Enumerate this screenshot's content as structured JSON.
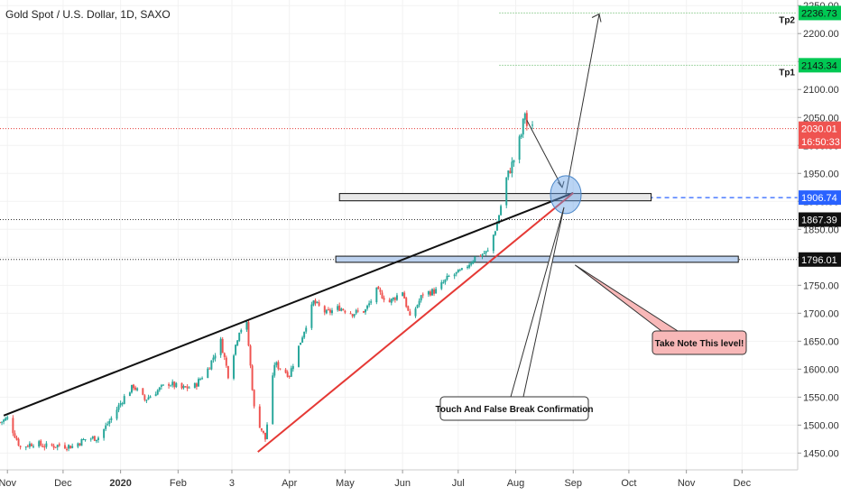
{
  "chart_data": {
    "type": "candlestick",
    "title": "Gold Spot / U.S. Dollar, 1D, SAXO",
    "y_axis": {
      "min": 1420,
      "max": 2260,
      "ticks": [
        1450,
        1500,
        1550,
        1600,
        1650,
        1700,
        1750,
        1800,
        1850,
        1900,
        1950,
        2000,
        2050,
        2100,
        2150,
        2200,
        2250
      ],
      "tick_labels": [
        "1450.00",
        "1500.00",
        "1550.00",
        "1600.00",
        "1650.00",
        "1700.00",
        "1750.00",
        "1800.00",
        "1850.00",
        "1900.00",
        "1950.00",
        "2000.00",
        "2050.00",
        "2100.00",
        "2150.00",
        "2200.00",
        "2250.00"
      ],
      "position": "right"
    },
    "x_axis": {
      "start": "2019-10-28",
      "end": "2020-12-31",
      "ticks": [
        {
          "label": "Nov",
          "date": "2019-11-01"
        },
        {
          "label": "Dec",
          "date": "2019-12-01"
        },
        {
          "label": "2020",
          "date": "2020-01-01"
        },
        {
          "label": "Feb",
          "date": "2020-02-01"
        },
        {
          "label": "3",
          "date": "2020-03-01"
        },
        {
          "label": "Apr",
          "date": "2020-04-01"
        },
        {
          "label": "May",
          "date": "2020-05-01"
        },
        {
          "label": "Jun",
          "date": "2020-06-01"
        },
        {
          "label": "Jul",
          "date": "2020-07-01"
        },
        {
          "label": "Aug",
          "date": "2020-08-01"
        },
        {
          "label": "Sep",
          "date": "2020-09-01"
        },
        {
          "label": "Oct",
          "date": "2020-10-01"
        },
        {
          "label": "Nov",
          "date": "2020-11-01"
        },
        {
          "label": "Dec",
          "date": "2020-12-01"
        }
      ]
    },
    "price_path": [
      [
        "2019-10-28",
        1505
      ],
      [
        "2019-11-01",
        1512
      ],
      [
        "2019-11-08",
        1460
      ],
      [
        "2019-11-15",
        1468
      ],
      [
        "2019-11-22",
        1462
      ],
      [
        "2019-11-29",
        1464
      ],
      [
        "2019-12-06",
        1462
      ],
      [
        "2019-12-13",
        1475
      ],
      [
        "2019-12-20",
        1478
      ],
      [
        "2019-12-27",
        1512
      ],
      [
        "2020-01-03",
        1550
      ],
      [
        "2020-01-08",
        1570
      ],
      [
        "2020-01-14",
        1545
      ],
      [
        "2020-01-20",
        1560
      ],
      [
        "2020-01-27",
        1575
      ],
      [
        "2020-02-03",
        1565
      ],
      [
        "2020-02-10",
        1570
      ],
      [
        "2020-02-17",
        1600
      ],
      [
        "2020-02-24",
        1650
      ],
      [
        "2020-02-28",
        1590
      ],
      [
        "2020-03-05",
        1670
      ],
      [
        "2020-03-09",
        1680
      ],
      [
        "2020-03-13",
        1530
      ],
      [
        "2020-03-16",
        1500
      ],
      [
        "2020-03-19",
        1475
      ],
      [
        "2020-03-24",
        1610
      ],
      [
        "2020-04-01",
        1590
      ],
      [
        "2020-04-07",
        1650
      ],
      [
        "2020-04-14",
        1720
      ],
      [
        "2020-04-21",
        1700
      ],
      [
        "2020-04-28",
        1710
      ],
      [
        "2020-05-05",
        1700
      ],
      [
        "2020-05-12",
        1705
      ],
      [
        "2020-05-18",
        1740
      ],
      [
        "2020-05-25",
        1720
      ],
      [
        "2020-06-01",
        1740
      ],
      [
        "2020-06-05",
        1690
      ],
      [
        "2020-06-12",
        1735
      ],
      [
        "2020-06-19",
        1740
      ],
      [
        "2020-06-26",
        1765
      ],
      [
        "2020-07-03",
        1775
      ],
      [
        "2020-07-10",
        1800
      ],
      [
        "2020-07-17",
        1810
      ],
      [
        "2020-07-22",
        1860
      ],
      [
        "2020-07-27",
        1940
      ],
      [
        "2020-07-31",
        1975
      ],
      [
        "2020-08-04",
        2020
      ],
      [
        "2020-08-06",
        2060
      ],
      [
        "2020-08-07",
        2035
      ],
      [
        "2020-08-10",
        2030
      ]
    ],
    "horizontal_lines": [
      {
        "value": 2236.73,
        "style": "dotted",
        "color": "#4caf50",
        "label": "Tp2"
      },
      {
        "value": 2143.34,
        "style": "dotted",
        "color": "#4caf50",
        "label": "Tp1"
      },
      {
        "value": 2030.01,
        "style": "dotted",
        "color": "#e53935"
      },
      {
        "value": 1906.74,
        "style": "dashed",
        "color": "#2962ff"
      },
      {
        "value": 1867.39,
        "style": "dotted",
        "color": "#333333"
      },
      {
        "value": 1796.01,
        "style": "dotted",
        "color": "#333333"
      }
    ],
    "trendlines": [
      {
        "name": "upper",
        "color": "#111111",
        "from": [
          "2019-10-30",
          1517
        ],
        "to": [
          "2020-09-01",
          1915
        ]
      },
      {
        "name": "lower",
        "color": "#e53935",
        "from": [
          "2020-03-15",
          1452
        ],
        "to": [
          "2020-09-01",
          1915
        ]
      }
    ],
    "zones": [
      {
        "label": "",
        "from": "2020-04-28",
        "to": "2020-10-13",
        "low": 1901,
        "high": 1914,
        "fill": "#e8e8e8"
      },
      {
        "label": "",
        "from": "2020-04-26",
        "to": "2020-11-29",
        "low": 1791,
        "high": 1802,
        "fill": "#bcd1ee"
      }
    ],
    "circle": {
      "date": "2020-08-28",
      "value": 1912
    },
    "projection": {
      "from": [
        "2020-08-28",
        1912
      ],
      "to": [
        "2020-09-15",
        2235
      ]
    },
    "annotations": [
      {
        "text": "Touch And False Break Confirmation",
        "anchor": [
          "2020-08-28",
          1912
        ]
      },
      {
        "text": "Take Note This level!",
        "anchor": [
          "2020-09-01",
          1796
        ]
      }
    ],
    "price_badges": [
      {
        "text": "2236.73",
        "value": 2236.73,
        "bg": "#00c853",
        "fg": "#111111"
      },
      {
        "text": "2143.34",
        "value": 2143.34,
        "bg": "#00c853",
        "fg": "#111111"
      },
      {
        "text": "2030.01",
        "value": 2030.01,
        "bg": "#ef5350",
        "fg": "#ffffff"
      },
      {
        "text": "16:50:33",
        "value": 2007,
        "bg": "#ef5350",
        "fg": "#ffffff"
      },
      {
        "text": "1906.74",
        "value": 1906.74,
        "bg": "#2962ff",
        "fg": "#ffffff"
      },
      {
        "text": "1867.39",
        "value": 1867.39,
        "bg": "#111111",
        "fg": "#ffffff"
      },
      {
        "text": "1796.01",
        "value": 1796.01,
        "bg": "#111111",
        "fg": "#ffffff"
      }
    ],
    "colors": {
      "up": "#26a69a",
      "down": "#ef5350"
    }
  }
}
